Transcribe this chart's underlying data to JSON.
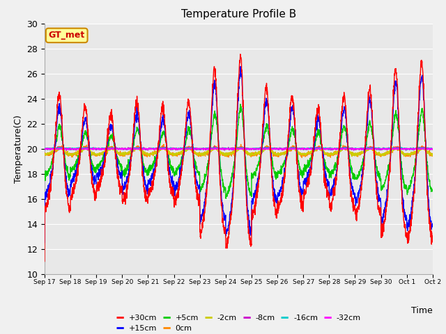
{
  "title": "Temperature Profile B",
  "xlabel": "Time",
  "ylabel": "Temperature(C)",
  "ylim": [
    10,
    30
  ],
  "tick_labels": [
    "Sep 17",
    "Sep 18",
    "Sep 19",
    "Sep 20",
    "Sep 21",
    "Sep 22",
    "Sep 23",
    "Sep 24",
    "Sep 25",
    "Sep 26",
    "Sep 27",
    "Sep 28",
    "Sep 29",
    "Sep 30",
    "Oct 1",
    "Oct 2"
  ],
  "series_colors": {
    "+30cm": "#ff0000",
    "+15cm": "#0000ff",
    "+5cm": "#00cc00",
    "0cm": "#ff8800",
    "-2cm": "#cccc00",
    "-8cm": "#cc00cc",
    "-16cm": "#00cccc",
    "-32cm": "#ff00ff"
  },
  "legend_label": "GT_met",
  "legend_bg": "#ffff99",
  "legend_border": "#cc8800",
  "legend_text_color": "#cc0000",
  "plot_bg": "#e8e8e8",
  "fig_bg": "#f0f0f0",
  "n_days": 15,
  "pts_per_day": 144,
  "base_temp": 19.8,
  "day_amplitudes_30cm": [
    4.5,
    3.5,
    3.0,
    4.0,
    3.5,
    4.0,
    6.5,
    7.5,
    5.0,
    4.5,
    3.5,
    4.5,
    5.0,
    6.5,
    7.0
  ],
  "day_amplitudes_15cm": [
    3.5,
    2.5,
    2.0,
    3.0,
    2.5,
    3.0,
    5.5,
    6.5,
    4.0,
    3.5,
    2.5,
    3.5,
    4.0,
    5.5,
    6.0
  ],
  "day_amplitudes_5cm": [
    2.0,
    1.5,
    1.2,
    1.8,
    1.5,
    1.8,
    3.0,
    3.5,
    2.0,
    1.8,
    1.5,
    2.0,
    2.2,
    3.0,
    3.2
  ]
}
